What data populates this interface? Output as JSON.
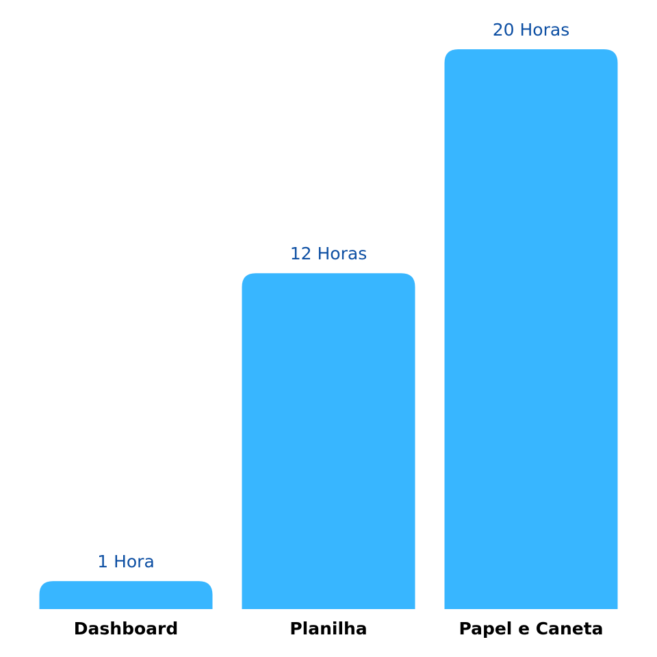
{
  "chart_data": {
    "type": "bar",
    "title": "",
    "xlabel": "",
    "ylabel": "",
    "categories": [
      "Dashboard",
      "Planilha",
      "Papel e Caneta"
    ],
    "values": [
      1,
      12,
      20
    ],
    "value_labels": [
      "1 Hora",
      "12 Horas",
      "20 Horas"
    ],
    "ylim": [
      0,
      20
    ],
    "grid": false,
    "legend": "none",
    "colors": {
      "bar": "#38B6FF",
      "value_label": "#0D4FA3",
      "category_label": "#000000"
    }
  }
}
